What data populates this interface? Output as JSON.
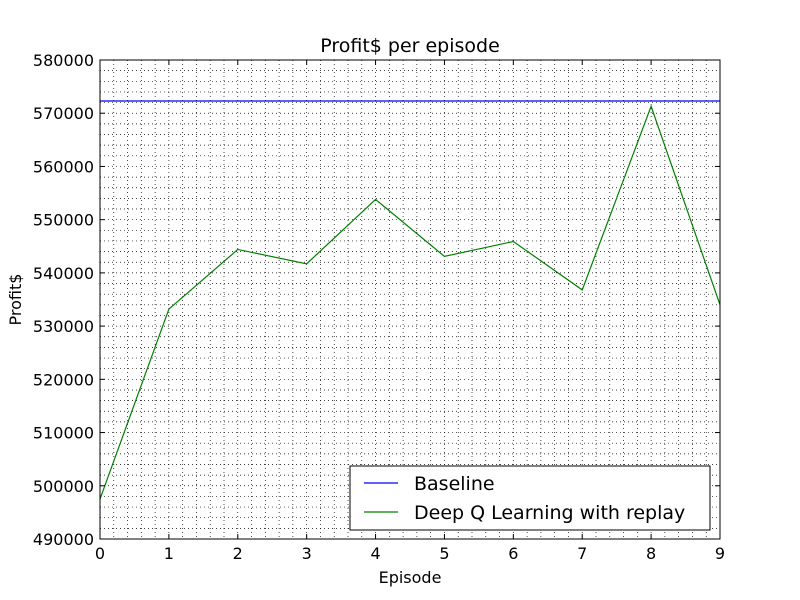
{
  "chart_data": {
    "type": "line",
    "title": "Profit$ per episode",
    "xlabel": "Episode",
    "ylabel": "Profit$",
    "xlim": [
      0,
      9
    ],
    "ylim": [
      490000,
      580000
    ],
    "xticks": [
      0,
      1,
      2,
      3,
      4,
      5,
      6,
      7,
      8,
      9
    ],
    "yticks": [
      490000,
      500000,
      510000,
      520000,
      530000,
      540000,
      550000,
      560000,
      570000,
      580000
    ],
    "grid": true,
    "legend_position": "lower-right",
    "series": [
      {
        "name": "Baseline",
        "color": "#0000ff",
        "x": [
          0,
          9
        ],
        "y": [
          572300,
          572300
        ]
      },
      {
        "name": "Deep Q Learning with replay",
        "color": "#008000",
        "x": [
          0,
          1,
          2,
          3,
          4,
          5,
          6,
          7,
          8,
          9
        ],
        "y": [
          497500,
          533200,
          544400,
          541700,
          553800,
          543100,
          545900,
          536800,
          571300,
          534000
        ]
      }
    ]
  }
}
